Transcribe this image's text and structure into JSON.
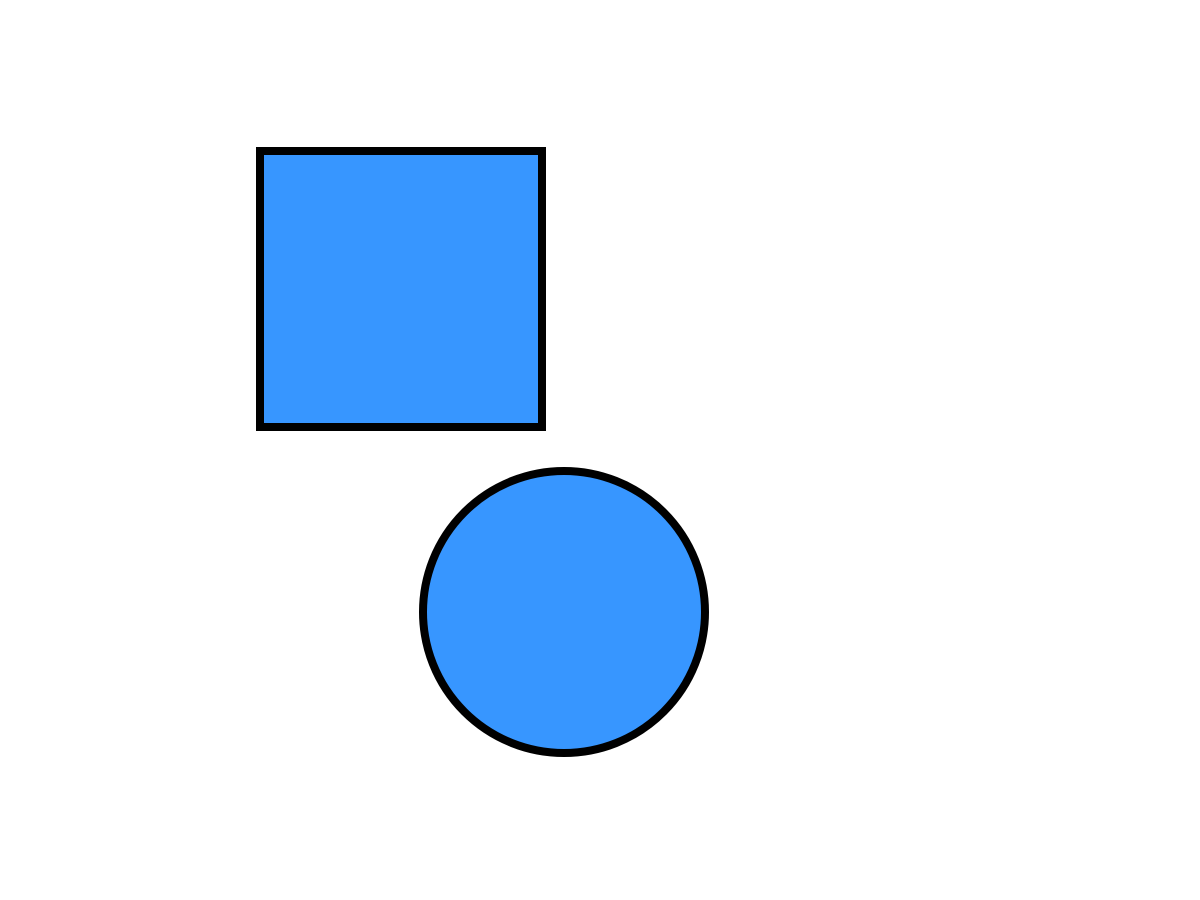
{
  "canvas": {
    "background_color": "#ffffff"
  },
  "shapes": [
    {
      "kind": "square",
      "fill_color": "#3796ff",
      "stroke_color": "#000000"
    },
    {
      "kind": "circle",
      "fill_color": "#3796ff",
      "stroke_color": "#000000"
    }
  ]
}
